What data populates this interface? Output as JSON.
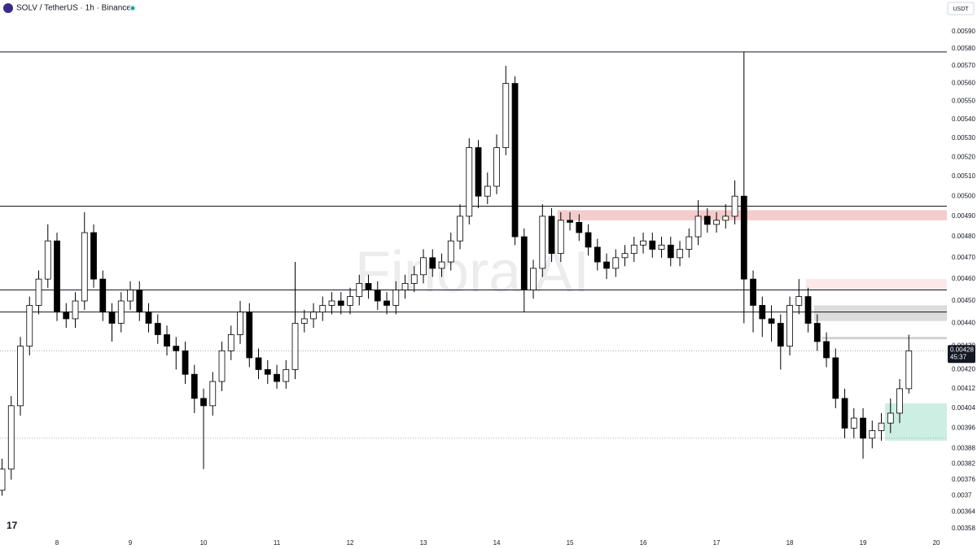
{
  "header": {
    "title": "SOLV / TetherUS · 1h · Binance",
    "currency": "USDT",
    "watermark": "Finora AI",
    "countdown": "45:37"
  },
  "chart_data": {
    "type": "candlestick",
    "log_scale": true,
    "up_color": "#ffffff",
    "down_color": "#000000",
    "outline_color": "#000000",
    "xlim": [
      7.222,
      20.144
    ],
    "xticks": [
      8,
      9,
      10,
      11,
      12,
      13,
      14,
      15,
      16,
      17,
      18,
      19,
      20
    ],
    "ylim": [
      0.00355,
      0.00609
    ],
    "yticks": [
      {
        "value": 0.0059,
        "label": "0.00590"
      },
      {
        "value": 0.0058,
        "label": "0.00580"
      },
      {
        "value": 0.0057,
        "label": "0.00570"
      },
      {
        "value": 0.0056,
        "label": "0.00560"
      },
      {
        "value": 0.0055,
        "label": "0.00550"
      },
      {
        "value": 0.0054,
        "label": "0.00540"
      },
      {
        "value": 0.0053,
        "label": "0.00530"
      },
      {
        "value": 0.0052,
        "label": "0.00520"
      },
      {
        "value": 0.0051,
        "label": "0.00510"
      },
      {
        "value": 0.005,
        "label": "0.00500"
      },
      {
        "value": 0.0049,
        "label": "0.00490"
      },
      {
        "value": 0.0048,
        "label": "0.00480"
      },
      {
        "value": 0.0047,
        "label": "0.00470"
      },
      {
        "value": 0.0046,
        "label": "0.00460"
      },
      {
        "value": 0.0045,
        "label": "0.00450"
      },
      {
        "value": 0.0044,
        "label": "0.00440"
      },
      {
        "value": 0.0043,
        "label": "0.00430"
      },
      {
        "value": 0.0042,
        "label": "0.00420"
      },
      0.00412,
      0.00404,
      0.00396,
      0.00388,
      0.00382,
      0.00376,
      0.0037,
      0.00364,
      0.00358
    ],
    "x": [
      7.25,
      7.375,
      7.5,
      7.625,
      7.75,
      7.875,
      8,
      8.125,
      8.25,
      8.375,
      8.5,
      8.625,
      8.75,
      8.875,
      9,
      9.125,
      9.25,
      9.375,
      9.5,
      9.625,
      9.75,
      9.875,
      10,
      10.125,
      10.25,
      10.375,
      10.5,
      10.625,
      10.75,
      10.875,
      11,
      11.125,
      11.25,
      11.375,
      11.5,
      11.625,
      11.75,
      11.875,
      12,
      12.125,
      12.25,
      12.375,
      12.5,
      12.625,
      12.75,
      12.875,
      13,
      13.125,
      13.25,
      13.375,
      13.5,
      13.625,
      13.75,
      13.875,
      14,
      14.125,
      14.25,
      14.375,
      14.5,
      14.625,
      14.75,
      14.875,
      15,
      15.125,
      15.25,
      15.375,
      15.5,
      15.625,
      15.75,
      15.875,
      16,
      16.125,
      16.25,
      16.375,
      16.5,
      16.625,
      16.75,
      16.875,
      17,
      17.125,
      17.25,
      17.375,
      17.5,
      17.625,
      17.75,
      17.875,
      18,
      18.125,
      18.25,
      18.375,
      18.5,
      18.625,
      18.75,
      18.875,
      19,
      19.125,
      19.25,
      19.375,
      19.5,
      19.625
    ],
    "candles": [
      [
        0.00372,
        0.00384,
        0.0037,
        0.0038
      ],
      [
        0.0038,
        0.00409,
        0.00376,
        0.00405
      ],
      [
        0.00405,
        0.00434,
        0.00401,
        0.0043
      ],
      [
        0.0043,
        0.00452,
        0.00426,
        0.00448
      ],
      [
        0.00448,
        0.00464,
        0.00444,
        0.0046
      ],
      [
        0.0046,
        0.00486,
        0.00456,
        0.00478
      ],
      [
        0.00478,
        0.00482,
        0.00441,
        0.00445
      ],
      [
        0.00445,
        0.00449,
        0.00438,
        0.00442
      ],
      [
        0.00442,
        0.00454,
        0.00438,
        0.0045
      ],
      [
        0.0045,
        0.00492,
        0.00446,
        0.00482
      ],
      [
        0.00482,
        0.00486,
        0.00456,
        0.0046
      ],
      [
        0.0046,
        0.00464,
        0.00441,
        0.00445
      ],
      [
        0.00445,
        0.00449,
        0.00432,
        0.0044
      ],
      [
        0.0044,
        0.00454,
        0.00436,
        0.0045
      ],
      [
        0.0045,
        0.00459,
        0.00446,
        0.00455
      ],
      [
        0.00455,
        0.00459,
        0.00441,
        0.00445
      ],
      [
        0.00445,
        0.00449,
        0.00436,
        0.0044
      ],
      [
        0.0044,
        0.00444,
        0.00431,
        0.00435
      ],
      [
        0.00435,
        0.00439,
        0.00426,
        0.0043
      ],
      [
        0.0043,
        0.00434,
        0.0042,
        0.00428
      ],
      [
        0.00428,
        0.00432,
        0.00414,
        0.00418
      ],
      [
        0.00418,
        0.00422,
        0.00402,
        0.00408
      ],
      [
        0.00408,
        0.00412,
        0.0038,
        0.00405
      ],
      [
        0.00405,
        0.00419,
        0.00401,
        0.00415
      ],
      [
        0.00415,
        0.00432,
        0.00411,
        0.00428
      ],
      [
        0.00428,
        0.00439,
        0.00424,
        0.00435
      ],
      [
        0.00435,
        0.0045,
        0.00431,
        0.00445
      ],
      [
        0.00445,
        0.00449,
        0.00421,
        0.00425
      ],
      [
        0.00425,
        0.00429,
        0.00416,
        0.0042
      ],
      [
        0.0042,
        0.00424,
        0.00414,
        0.00418
      ],
      [
        0.00418,
        0.00422,
        0.00412,
        0.00415
      ],
      [
        0.00415,
        0.00424,
        0.00412,
        0.0042
      ],
      [
        0.0042,
        0.00468,
        0.00416,
        0.0044
      ],
      [
        0.0044,
        0.00446,
        0.00436,
        0.00442
      ],
      [
        0.00442,
        0.00449,
        0.00438,
        0.00445
      ],
      [
        0.00445,
        0.00452,
        0.00441,
        0.00448
      ],
      [
        0.00448,
        0.00454,
        0.00444,
        0.0045
      ],
      [
        0.0045,
        0.00454,
        0.00444,
        0.00448
      ],
      [
        0.00448,
        0.00456,
        0.00444,
        0.00452
      ],
      [
        0.00452,
        0.00462,
        0.00448,
        0.00458
      ],
      [
        0.00458,
        0.00462,
        0.00451,
        0.00455
      ],
      [
        0.00455,
        0.00459,
        0.00446,
        0.0045
      ],
      [
        0.0045,
        0.00454,
        0.00444,
        0.00448
      ],
      [
        0.00448,
        0.00459,
        0.00444,
        0.00455
      ],
      [
        0.00455,
        0.00462,
        0.00451,
        0.00458
      ],
      [
        0.00458,
        0.00466,
        0.00454,
        0.00462
      ],
      [
        0.00462,
        0.00474,
        0.00458,
        0.0047
      ],
      [
        0.0047,
        0.00474,
        0.00461,
        0.00465
      ],
      [
        0.00465,
        0.00472,
        0.00461,
        0.00468
      ],
      [
        0.00468,
        0.00482,
        0.00464,
        0.00478
      ],
      [
        0.00478,
        0.00496,
        0.00474,
        0.0049
      ],
      [
        0.0049,
        0.0053,
        0.00486,
        0.00525
      ],
      [
        0.00525,
        0.00529,
        0.00494,
        0.005
      ],
      [
        0.005,
        0.00512,
        0.00496,
        0.00505
      ],
      [
        0.00505,
        0.00532,
        0.00501,
        0.00525
      ],
      [
        0.00525,
        0.0057,
        0.00521,
        0.0056
      ],
      [
        0.0056,
        0.00564,
        0.00476,
        0.0048
      ],
      [
        0.0048,
        0.00484,
        0.00445,
        0.00455
      ],
      [
        0.00455,
        0.00469,
        0.00451,
        0.00465
      ],
      [
        0.00465,
        0.00496,
        0.00461,
        0.0049
      ],
      [
        0.0049,
        0.00494,
        0.00468,
        0.00472
      ],
      [
        0.00472,
        0.00492,
        0.00468,
        0.00488
      ],
      [
        0.00488,
        0.00492,
        0.00483,
        0.00487
      ],
      [
        0.00487,
        0.00491,
        0.00478,
        0.00482
      ],
      [
        0.00482,
        0.00486,
        0.00471,
        0.00475
      ],
      [
        0.00475,
        0.00479,
        0.00464,
        0.00468
      ],
      [
        0.00468,
        0.00472,
        0.0046,
        0.00465
      ],
      [
        0.00465,
        0.00474,
        0.00461,
        0.0047
      ],
      [
        0.0047,
        0.00476,
        0.00466,
        0.00472
      ],
      [
        0.00472,
        0.0048,
        0.00468,
        0.00476
      ],
      [
        0.00476,
        0.00482,
        0.00472,
        0.00478
      ],
      [
        0.00478,
        0.00482,
        0.0047,
        0.00474
      ],
      [
        0.00474,
        0.0048,
        0.0047,
        0.00476
      ],
      [
        0.00476,
        0.0048,
        0.00466,
        0.0047
      ],
      [
        0.0047,
        0.00478,
        0.00466,
        0.00474
      ],
      [
        0.00474,
        0.00484,
        0.0047,
        0.0048
      ],
      [
        0.0048,
        0.00498,
        0.00476,
        0.0049
      ],
      [
        0.0049,
        0.00494,
        0.00482,
        0.00486
      ],
      [
        0.00486,
        0.00492,
        0.00482,
        0.00488
      ],
      [
        0.00488,
        0.00496,
        0.00484,
        0.0049
      ],
      [
        0.0049,
        0.00508,
        0.00486,
        0.005
      ],
      [
        0.005,
        0.00578,
        0.0044,
        0.0046
      ],
      [
        0.0046,
        0.00464,
        0.00436,
        0.00448
      ],
      [
        0.00448,
        0.00452,
        0.00434,
        0.00442
      ],
      [
        0.00442,
        0.00448,
        0.00432,
        0.0044
      ],
      [
        0.0044,
        0.00444,
        0.0042,
        0.0043
      ],
      [
        0.0043,
        0.00452,
        0.00426,
        0.00448
      ],
      [
        0.00448,
        0.0046,
        0.00444,
        0.00452
      ],
      [
        0.00452,
        0.00456,
        0.00436,
        0.0044
      ],
      [
        0.0044,
        0.00444,
        0.00428,
        0.00432
      ],
      [
        0.00432,
        0.00436,
        0.00421,
        0.00425
      ],
      [
        0.00425,
        0.00429,
        0.00404,
        0.00408
      ],
      [
        0.00408,
        0.00412,
        0.00392,
        0.00396
      ],
      [
        0.00396,
        0.00404,
        0.00392,
        0.004
      ],
      [
        0.004,
        0.00404,
        0.00384,
        0.00392
      ],
      [
        0.00392,
        0.00399,
        0.00388,
        0.00395
      ],
      [
        0.00395,
        0.00402,
        0.00391,
        0.00398
      ],
      [
        0.00398,
        0.00408,
        0.00394,
        0.00402
      ],
      [
        0.00402,
        0.00416,
        0.00398,
        0.00412
      ],
      [
        0.00412,
        0.00435,
        0.0041,
        0.00428
      ]
    ],
    "levels": [
      0.00578,
      0.00495,
      0.00455,
      0.00445
    ],
    "dotted_levels": [
      0.00428,
      0.00392
    ],
    "zones": [
      {
        "from": 14.83,
        "top": 0.00493,
        "bottom": 0.00488,
        "color": "#f4cccc"
      },
      {
        "from": 18.22,
        "top": 0.0046,
        "bottom": 0.00455,
        "color": "#fce8e8"
      },
      {
        "from": 18.33,
        "top": 0.00448,
        "bottom": 0.00441,
        "color": "#dcdcdc"
      },
      {
        "from": 18.44,
        "top": 0.00434,
        "bottom": 0.00433,
        "color": "#d0d0d0"
      },
      {
        "from": 19.3,
        "top": 0.00406,
        "bottom": 0.00391,
        "color": "#cdeee3"
      }
    ]
  }
}
